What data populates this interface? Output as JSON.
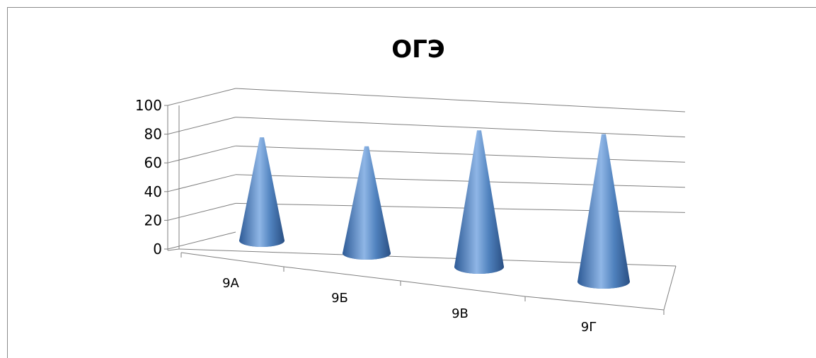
{
  "chart_data": {
    "type": "bar",
    "style": "3d-cone",
    "title": "ОГЭ",
    "categories": [
      "9А",
      "9Б",
      "9В",
      "9Г"
    ],
    "values": [
      78,
      76,
      81,
      79
    ],
    "ylim": [
      0,
      100
    ],
    "yticks": [
      0,
      20,
      40,
      60,
      80,
      100
    ],
    "ytick_labels": [
      "0",
      "20",
      "40",
      "60",
      "80",
      "100"
    ],
    "grid": true,
    "legend": "none",
    "xlabel": "",
    "ylabel": "",
    "colors": {
      "cone": "#4f81bd",
      "gridline": "#7f7f7f"
    }
  }
}
